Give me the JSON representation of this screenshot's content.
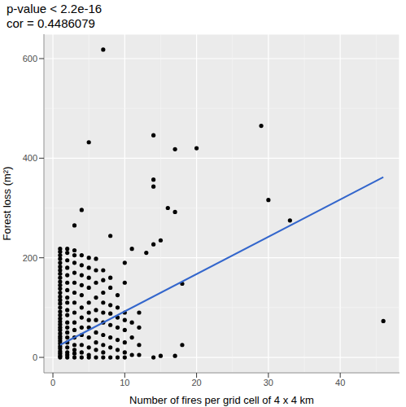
{
  "chart_data": {
    "type": "scatter",
    "title": "p-value < 2.2e-16",
    "subtitle": "cor = 0.4486079",
    "x_label": "Number of fires per grid cell of 4 x 4 km",
    "y_label": "Forest loss (m²)",
    "color": "#000000",
    "marker": "circle",
    "grid": true,
    "xlim": [
      -1.25,
      48.25
    ],
    "ylim": [
      -31,
      649
    ],
    "xticks": [
      0,
      10,
      20,
      30,
      40
    ],
    "yticks": [
      0,
      200,
      400,
      600
    ],
    "x_minor_grid": [
      5,
      15,
      25,
      35,
      45
    ],
    "y_minor_grid": [
      100,
      300,
      500
    ],
    "x": [
      1,
      1,
      1,
      1,
      1,
      1,
      1,
      1,
      1,
      1,
      1,
      1,
      1,
      1,
      1,
      1,
      1,
      1,
      1,
      1,
      1,
      1,
      1,
      1,
      1,
      1,
      1,
      1,
      1,
      1,
      1,
      1,
      1,
      1,
      1,
      2,
      2,
      2,
      2,
      2,
      2,
      2,
      2,
      2,
      2,
      2,
      2,
      2,
      2,
      2,
      2,
      2,
      2,
      2,
      2,
      3,
      3,
      3,
      3,
      3,
      3,
      3,
      3,
      3,
      3,
      3,
      3,
      3,
      3,
      3,
      3,
      4,
      4,
      4,
      4,
      4,
      4,
      4,
      4,
      4,
      4,
      4,
      4,
      4,
      5,
      5,
      5,
      5,
      5,
      5,
      5,
      5,
      5,
      5,
      5,
      5,
      5,
      6,
      6,
      6,
      6,
      6,
      6,
      6,
      6,
      6,
      6,
      7,
      7,
      7,
      7,
      7,
      7,
      7,
      7,
      7,
      7,
      7,
      8,
      8,
      8,
      8,
      8,
      8,
      8,
      8,
      8,
      9,
      9,
      9,
      9,
      9,
      9,
      9,
      10,
      10,
      10,
      10,
      10,
      10,
      10,
      10,
      11,
      11,
      11,
      11,
      12,
      12,
      12,
      12,
      13,
      14,
      14,
      14,
      14,
      14,
      15,
      15,
      16,
      17,
      17,
      17,
      18,
      18,
      20,
      29,
      30,
      33,
      46
    ],
    "values": [
      0,
      3,
      8,
      12,
      18,
      22,
      28,
      33,
      38,
      42,
      48,
      55,
      60,
      66,
      72,
      78,
      85,
      92,
      100,
      108,
      115,
      122,
      130,
      138,
      145,
      152,
      160,
      168,
      175,
      182,
      190,
      198,
      205,
      212,
      218,
      0,
      5,
      10,
      20,
      30,
      40,
      50,
      60,
      70,
      85,
      95,
      110,
      120,
      135,
      150,
      165,
      180,
      195,
      210,
      218,
      0,
      8,
      15,
      25,
      40,
      55,
      70,
      90,
      110,
      130,
      150,
      170,
      190,
      205,
      215,
      265,
      0,
      10,
      25,
      45,
      60,
      80,
      100,
      125,
      145,
      165,
      185,
      205,
      296,
      0,
      5,
      20,
      40,
      60,
      75,
      90,
      110,
      140,
      160,
      180,
      200,
      432,
      0,
      15,
      30,
      50,
      75,
      95,
      120,
      150,
      175,
      198,
      0,
      10,
      25,
      45,
      70,
      90,
      110,
      130,
      155,
      175,
      618,
      0,
      20,
      40,
      65,
      88,
      105,
      140,
      160,
      244,
      0,
      15,
      35,
      60,
      80,
      100,
      125,
      0,
      10,
      30,
      55,
      75,
      90,
      150,
      190,
      5,
      40,
      70,
      218,
      5,
      25,
      60,
      90,
      210,
      0,
      227,
      343,
      357,
      446,
      3,
      235,
      300,
      3,
      292,
      418,
      25,
      148,
      420,
      465,
      316,
      275,
      73
    ],
    "fit_line": {
      "type": "line",
      "x": [
        1,
        46
      ],
      "values": [
        25,
        362
      ],
      "color": "#3366cc"
    }
  }
}
